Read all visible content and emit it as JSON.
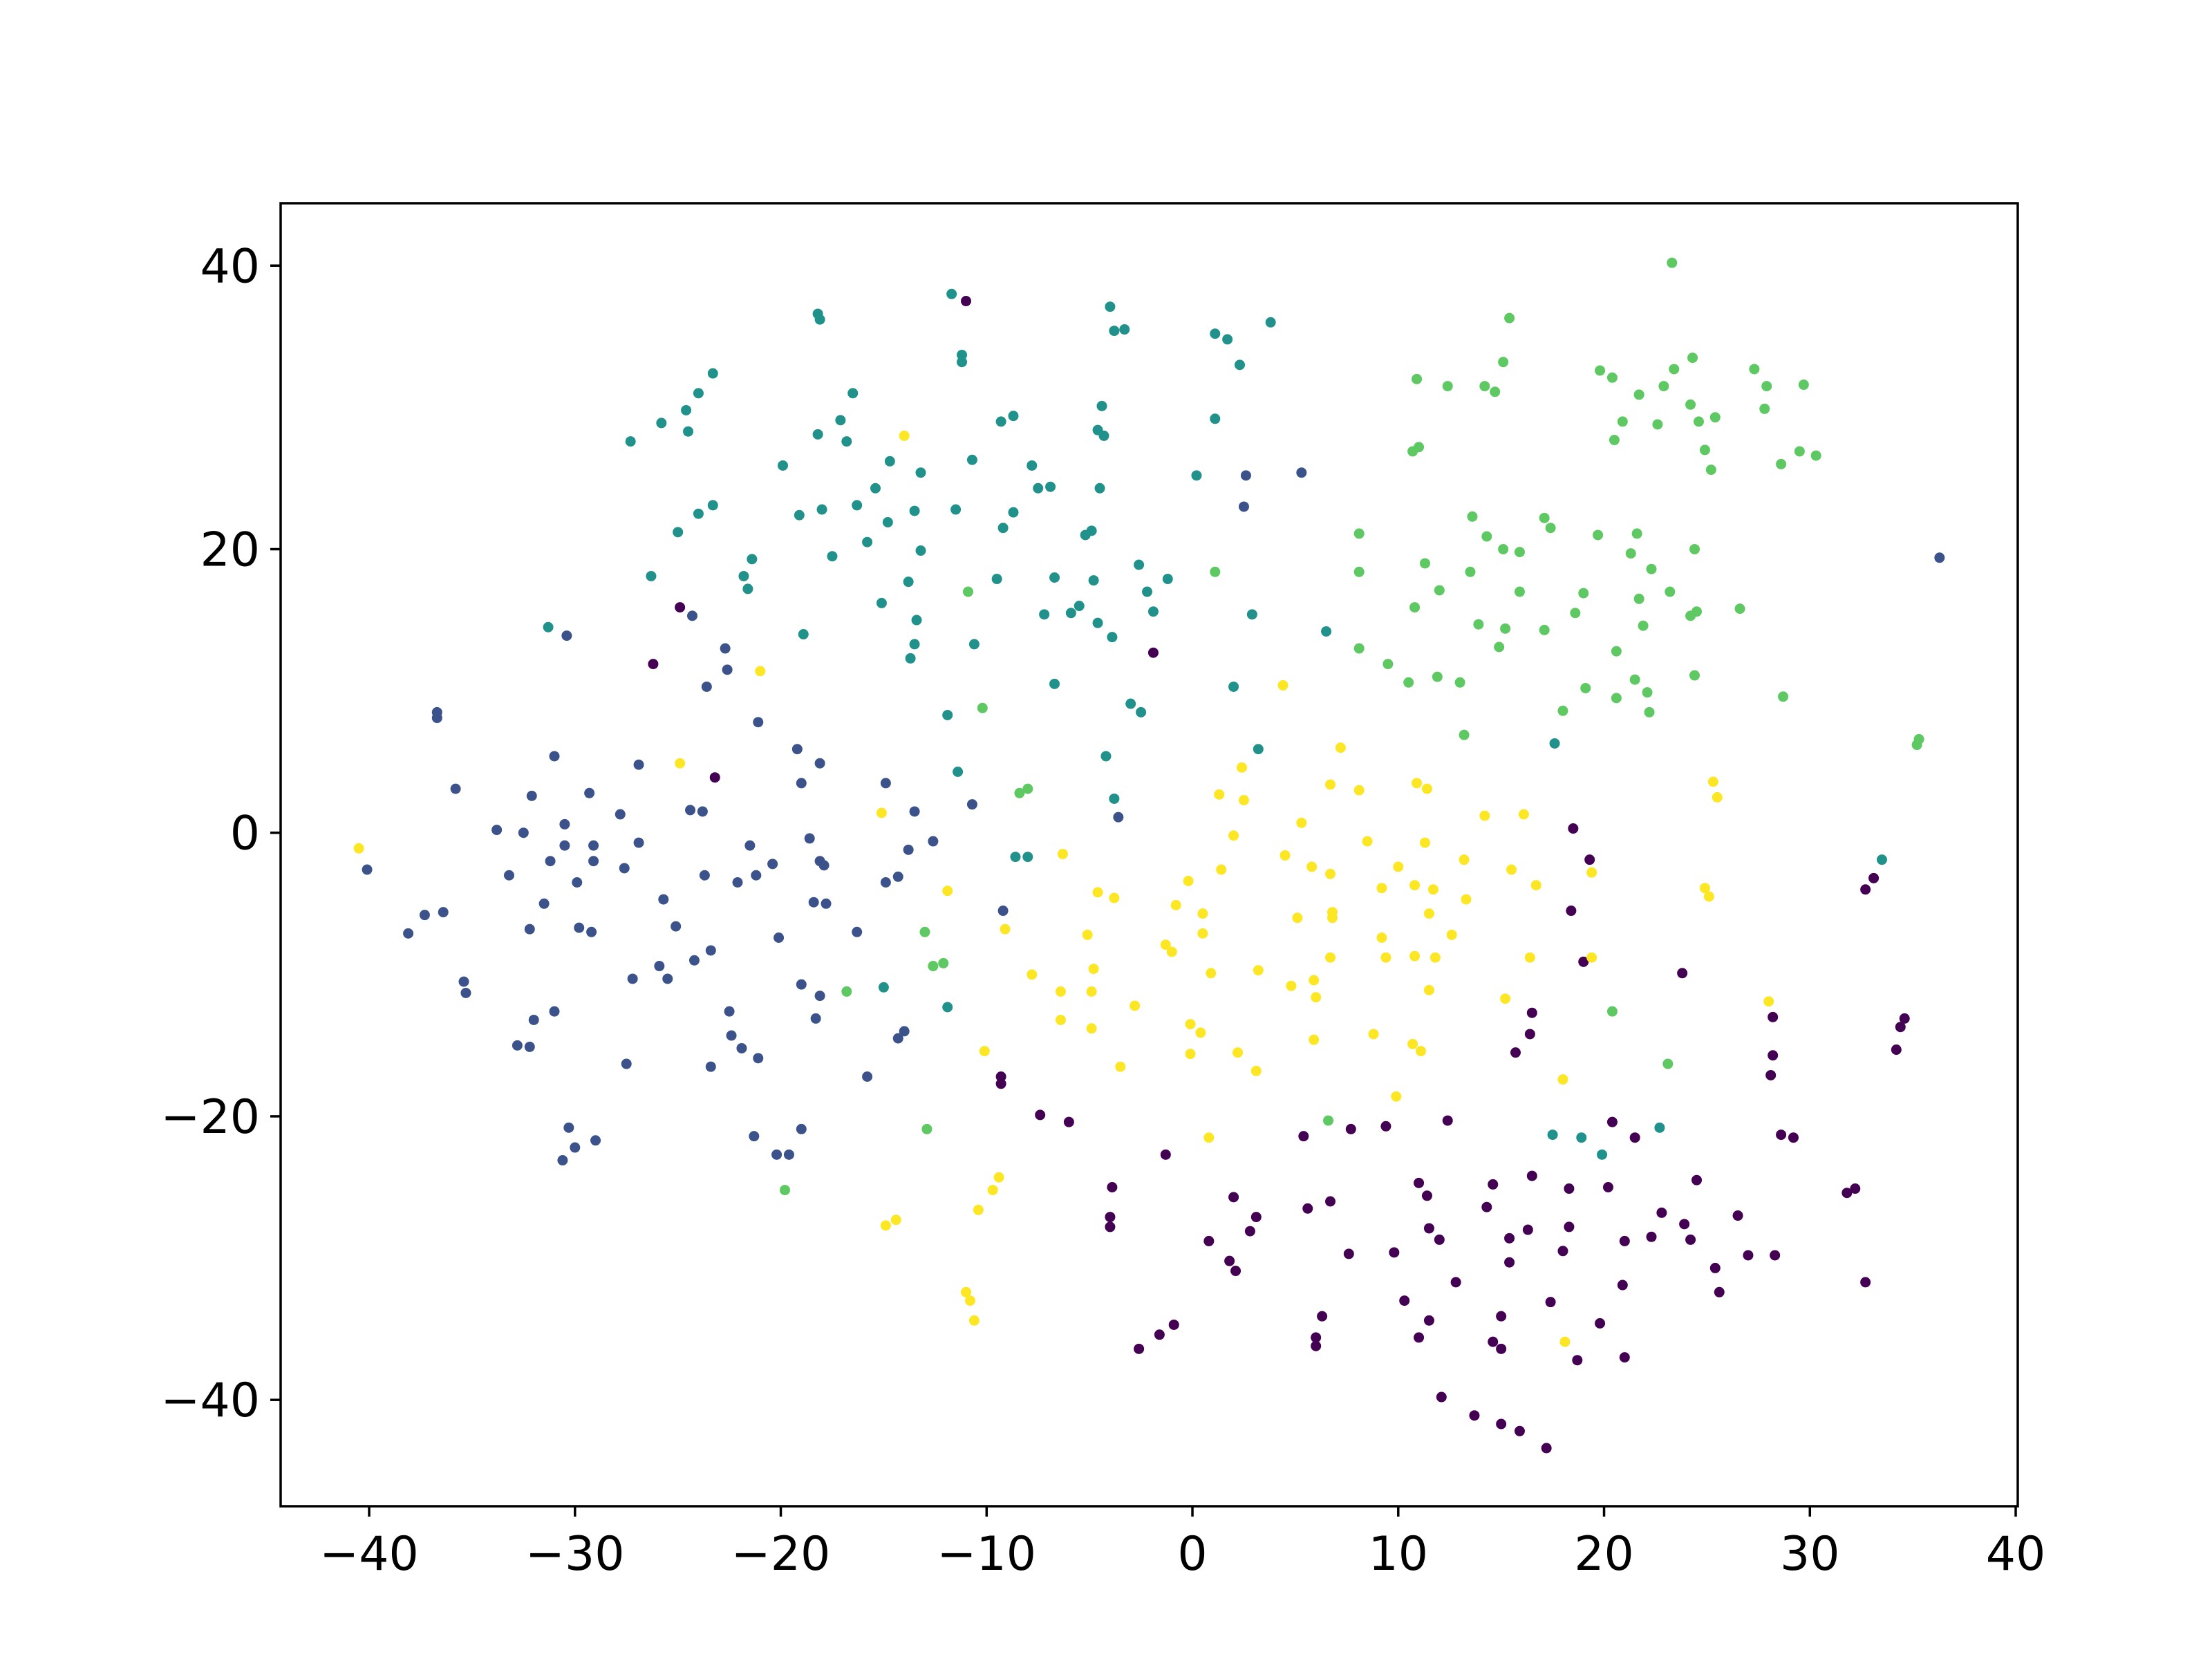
{
  "chart_data": {
    "type": "scatter",
    "xlim": [
      -44.3,
      40.1
    ],
    "ylim": [
      -47.5,
      44.4
    ],
    "xticks": [
      {
        "value": -40,
        "label": "−40"
      },
      {
        "value": -30,
        "label": "−30"
      },
      {
        "value": -20,
        "label": "−20"
      },
      {
        "value": -10,
        "label": "−10"
      },
      0,
      10,
      20,
      30,
      40
    ],
    "yticks": [
      {
        "value": -40,
        "label": "−40"
      },
      {
        "value": -20,
        "label": "−20"
      },
      0,
      20,
      40
    ],
    "grid": false,
    "series": [
      {
        "color": "#440154",
        "x": [
          -11.0,
          -26.2,
          -24.9,
          -23.2,
          -1.9,
          18.5,
          19.3,
          19.0,
          18.4,
          23.8,
          32.7,
          33.1,
          34.6,
          34.4,
          34.2,
          28.2,
          28.2,
          28.1,
          16.5,
          16.4,
          15.7,
          28.6,
          29.2,
          31.8,
          32.2,
          32.7,
          -9.3,
          -9.3,
          -7.4,
          -6.0,
          -3.9,
          -4.0,
          -4.0,
          -1.3,
          2.0,
          3.1,
          2.8,
          0.8,
          1.8,
          2.1,
          5.4,
          5.6,
          7.7,
          9.4,
          12.4,
          6.7,
          7.6,
          9.8,
          11.5,
          11.0,
          11.4,
          12.0,
          12.8,
          10.3,
          11.5,
          11.0,
          14.3,
          14.6,
          15.4,
          15.4,
          16.3,
          16.5,
          18.3,
          18.3,
          18.0,
          17.4,
          15.0,
          14.6,
          15.0,
          18.7,
          19.8,
          20.9,
          20.2,
          20.4,
          21.5,
          21.0,
          22.3,
          22.8,
          23.9,
          24.2,
          24.5,
          25.4,
          25.6,
          26.5,
          27.0,
          28.3,
          21.0,
          12.1,
          13.7,
          15.0,
          15.9,
          17.2,
          6.3,
          6.0,
          6.0,
          -0.9,
          -1.6,
          -2.6
        ],
        "y": [
          37.5,
          11.9,
          15.9,
          3.9,
          12.7,
          0.3,
          -1.9,
          -9.1,
          -5.5,
          -9.9,
          -4.0,
          -3.2,
          -13.1,
          -13.7,
          -15.3,
          -13.0,
          -15.7,
          -17.1,
          -12.7,
          -14.2,
          -15.5,
          -21.3,
          -21.5,
          -25.4,
          -25.1,
          -31.7,
          -17.2,
          -17.7,
          -19.9,
          -20.4,
          -25.0,
          -27.1,
          -27.8,
          -22.7,
          -25.7,
          -27.1,
          -28.1,
          -28.8,
          -30.2,
          -30.9,
          -21.4,
          -26.5,
          -20.9,
          -20.7,
          -20.3,
          -26.0,
          -29.7,
          -29.6,
          -27.9,
          -24.7,
          -25.6,
          -28.7,
          -31.7,
          -33.0,
          -34.4,
          -35.6,
          -26.4,
          -24.8,
          -28.6,
          -30.3,
          -28.0,
          -24.2,
          -25.1,
          -27.8,
          -29.5,
          -33.1,
          -34.1,
          -35.9,
          -36.4,
          -37.2,
          -34.6,
          -31.9,
          -25.0,
          -20.4,
          -21.5,
          -28.8,
          -28.5,
          -26.8,
          -27.6,
          -28.7,
          -24.5,
          -30.7,
          -32.4,
          -27.0,
          -29.8,
          -29.8,
          -37.0,
          -39.8,
          -41.1,
          -41.7,
          -42.2,
          -43.4,
          -34.1,
          -35.6,
          -36.2,
          -34.7,
          -35.4,
          -36.4
        ]
      },
      {
        "color": "#3b528b",
        "x": [
          36.3,
          5.3,
          2.5,
          2.6,
          -30.4,
          -24.3,
          -22.7,
          -22.6,
          -23.6,
          -21.1,
          -36.7,
          -36.7,
          -35.8,
          -31.0,
          -26.9,
          -19.2,
          -18.1,
          -19.0,
          -14.9,
          -33.8,
          -32.5,
          -32.1,
          -30.5,
          -29.3,
          -27.8,
          -26.9,
          -31.2,
          -30.5,
          -29.1,
          -29.1,
          -29.9,
          -27.6,
          -33.2,
          -31.5,
          -32.2,
          -29.8,
          -29.2,
          -40.1,
          -38.1,
          -37.3,
          -36.4,
          -35.4,
          -35.3,
          -27.2,
          -25.9,
          -25.5,
          -25.7,
          -25.1,
          -24.4,
          -23.8,
          -23.7,
          -23.4,
          -24.2,
          -22.1,
          -21.5,
          -21.2,
          -20.4,
          -20.1,
          -22.5,
          -22.4,
          -21.9,
          -21.1,
          -23.4,
          -27.5,
          -31.0,
          -32.0,
          -32.8,
          -32.2,
          -30.3,
          -30.0,
          -30.6,
          -29.0,
          -21.3,
          -19.0,
          -20.2,
          -19.6,
          -18.6,
          -18.1,
          -17.9,
          -18.4,
          -17.8,
          -19.0,
          -18.1,
          -18.3,
          -16.3,
          -15.8,
          -14.9,
          -14.3,
          -13.8,
          -13.5,
          -12.6,
          -10.7,
          -14.3,
          -14.0,
          -9.2,
          -3.6
        ],
        "y": [
          19.4,
          25.4,
          23.0,
          25.2,
          13.9,
          15.3,
          13.0,
          11.5,
          10.3,
          7.8,
          8.5,
          8.1,
          3.1,
          5.4,
          4.8,
          5.9,
          4.9,
          3.5,
          3.5,
          0.2,
          0,
          2.6,
          0.6,
          2.8,
          1.3,
          -0.7,
          -2.0,
          -0.9,
          -0.9,
          -2.0,
          -3.5,
          -2.5,
          -3.0,
          -5.0,
          -6.8,
          -6.7,
          -7.0,
          -2.6,
          -7.1,
          -5.8,
          -5.6,
          -10.5,
          -11.3,
          -10.3,
          -9.4,
          -10.3,
          -4.7,
          -6.6,
          1.6,
          1.5,
          -3.0,
          -8.3,
          -9.0,
          -3.5,
          -0.9,
          -3.0,
          -2.2,
          -7.4,
          -12.6,
          -14.3,
          -15.2,
          -15.9,
          -16.5,
          -16.3,
          -12.6,
          -13.2,
          -15.0,
          -15.1,
          -20.8,
          -22.2,
          -23.1,
          -21.7,
          -21.4,
          -20.9,
          -22.7,
          -22.7,
          -0.4,
          -2.0,
          -2.3,
          -4.9,
          -5.0,
          -10.7,
          -11.5,
          -13.1,
          -7.0,
          -17.2,
          -3.5,
          -3.1,
          -1.2,
          1.5,
          -0.6,
          2.0,
          -14.5,
          -14.0,
          -5.5,
          1.1
        ]
      },
      {
        "color": "#21918c",
        "x": [
          -11.7,
          -18.2,
          -18.1,
          -11.2,
          -11.2,
          -4.0,
          -3.8,
          -3.3,
          1.1,
          1.7,
          3.8,
          2.3,
          -23.3,
          -24.0,
          -24.6,
          -24.5,
          -25.8,
          -27.3,
          -16.5,
          -17.1,
          -18.2,
          -16.8,
          -19.9,
          -14.7,
          -13.2,
          -10.7,
          -9.3,
          -8.7,
          -7.8,
          -7.5,
          -6.9,
          -4.4,
          -4.6,
          -4.3,
          -4.5,
          1.1,
          0.2,
          -23.3,
          -24.0,
          -25.0,
          -26.3,
          -21.4,
          -21.8,
          -21.6,
          -19.1,
          -18.0,
          -17.5,
          -16.3,
          -15.4,
          -15.8,
          -14.8,
          -13.5,
          -13.2,
          -11.5,
          -8.7,
          -9.2,
          -9.5,
          -15.1,
          -13.8,
          -13.4,
          -13.5,
          -13.7,
          -10.6,
          -18.9,
          -31.3,
          -6.7,
          -7.2,
          -5.9,
          -5.5,
          -5.2,
          -4.9,
          -4.8,
          -4.6,
          -3.9,
          -2.6,
          -2.2,
          -1.9,
          -1.2,
          -6.7,
          -3.0,
          -2.5,
          -4.2,
          -3.8,
          -11.9,
          -11.4,
          2.9,
          2.0,
          6.5,
          3.2,
          17.6,
          33.5,
          -8.6,
          -8.0,
          -15.0,
          -11.9,
          17.5,
          18.9,
          19.9,
          22.7
        ],
        "y": [
          38.0,
          36.6,
          36.2,
          33.7,
          33.2,
          37.1,
          35.4,
          35.5,
          35.2,
          34.8,
          36.0,
          33.0,
          32.4,
          31.0,
          29.8,
          28.3,
          28.9,
          27.6,
          31.0,
          29.1,
          28.1,
          27.6,
          25.9,
          26.2,
          25.4,
          26.3,
          29.0,
          29.4,
          25.9,
          24.3,
          24.4,
          30.1,
          28.4,
          28.0,
          24.3,
          29.2,
          25.2,
          23.1,
          22.5,
          21.2,
          18.1,
          19.3,
          18.1,
          17.2,
          22.4,
          22.8,
          19.5,
          23.1,
          24.3,
          20.5,
          21.9,
          22.7,
          19.9,
          22.8,
          22.6,
          21.5,
          17.9,
          16.2,
          17.7,
          15.0,
          13.3,
          12.3,
          13.3,
          14.0,
          14.5,
          18.0,
          15.4,
          15.5,
          16.0,
          21.0,
          21.3,
          17.8,
          14.8,
          13.8,
          18.9,
          17.0,
          15.6,
          17.9,
          10.5,
          9.1,
          8.5,
          5.4,
          2.4,
          8.3,
          4.3,
          15.4,
          10.3,
          14.2,
          5.9,
          6.3,
          -1.9,
          -1.7,
          -1.7,
          -10.9,
          -12.3,
          -21.3,
          -21.5,
          -22.7,
          -20.8
        ]
      },
      {
        "color": "#5ec962",
        "x": [
          23.3,
          15.4,
          15.1,
          10.9,
          12.4,
          14.2,
          14.7,
          19.8,
          20.4,
          21.7,
          22.9,
          23.4,
          24.3,
          24.2,
          24.6,
          25.4,
          22.6,
          20.9,
          20.5,
          24.9,
          25.2,
          27.3,
          27.9,
          27.8,
          29.7,
          29.5,
          30.3,
          28.6,
          10.7,
          11.0,
          8.1,
          8.1,
          11.3,
          10.8,
          12.0,
          13.6,
          14.3,
          13.5,
          15.1,
          15.9,
          17.1,
          17.4,
          15.9,
          13.9,
          15.2,
          14.9,
          17.1,
          18.6,
          19.0,
          19.7,
          21.3,
          21.6,
          22.3,
          21.7,
          23.2,
          21.9,
          24.2,
          24.5,
          24.4,
          26.6,
          24.4,
          21.5,
          22.1,
          22.2,
          20.6,
          19.1,
          20.6,
          18.0,
          8.1,
          9.5,
          10.5,
          11.9,
          13.0,
          13.2,
          28.7,
          35.2,
          35.3,
          1.1,
          -10.9,
          -10.2,
          -8.4,
          -8.0,
          -13.0,
          -12.6,
          -12.1,
          -16.8,
          -12.9,
          -19.8,
          6.6,
          20.4,
          23.1
        ],
        "y": [
          40.2,
          36.3,
          33.2,
          32.0,
          31.5,
          31.5,
          31.1,
          32.6,
          32.1,
          30.9,
          31.5,
          32.7,
          33.5,
          30.2,
          29.0,
          29.3,
          28.8,
          29.0,
          27.7,
          27.0,
          25.6,
          32.7,
          31.5,
          29.9,
          31.6,
          26.9,
          26.6,
          26.0,
          26.9,
          27.2,
          21.1,
          18.4,
          19.0,
          15.9,
          17.1,
          22.3,
          20.9,
          18.4,
          20.0,
          19.8,
          22.2,
          21.5,
          17.0,
          14.7,
          14.4,
          13.1,
          14.3,
          15.5,
          16.9,
          21.0,
          19.7,
          21.1,
          18.6,
          16.5,
          17.0,
          14.6,
          15.3,
          15.6,
          20.0,
          15.8,
          11.1,
          10.8,
          9.9,
          8.5,
          12.8,
          10.2,
          9.5,
          8.6,
          13.0,
          11.9,
          10.6,
          11.0,
          10.6,
          6.9,
          9.6,
          6.2,
          6.6,
          18.4,
          17.0,
          8.8,
          2.8,
          3.1,
          -7.0,
          -9.4,
          -9.2,
          -11.2,
          -20.9,
          -25.2,
          -20.3,
          -12.6,
          -16.3
        ]
      },
      {
        "color": "#fde725",
        "x": [
          -40.5,
          -24.9,
          -21.0,
          -14.0,
          4.4,
          7.2,
          -15.1,
          -11.9,
          -9.1,
          -6.3,
          -4.6,
          -3.8,
          -5.1,
          -7.8,
          -6.4,
          -6.4,
          -4.8,
          -4.9,
          -4.9,
          -2.8,
          -3.5,
          -10.1,
          -9.4,
          -9.7,
          -10.4,
          -14.9,
          -14.4,
          -11.0,
          -10.8,
          -10.6,
          -0.2,
          -0.8,
          0.5,
          0.5,
          -1.3,
          -1.0,
          0.9,
          -0.1,
          0.4,
          -0.1,
          2.2,
          3.1,
          0.8,
          1.4,
          2.0,
          1.3,
          2.4,
          2.5,
          3.2,
          4.5,
          5.3,
          5.1,
          4.8,
          5.8,
          5.9,
          6.0,
          5.9,
          6.7,
          6.7,
          6.8,
          6.8,
          6.7,
          8.1,
          8.5,
          9.2,
          10.0,
          9.2,
          9.4,
          8.8,
          9.9,
          10.9,
          11.4,
          11.3,
          10.8,
          11.7,
          11.5,
          10.8,
          11.8,
          11.5,
          10.7,
          11.1,
          12.6,
          13.2,
          13.3,
          14.2,
          15.5,
          16.7,
          16.1,
          16.4,
          15.2,
          18.0,
          19.4,
          19.4,
          18.1,
          25.3,
          25.5,
          24.9,
          25.1,
          28.0
        ],
        "y": [
          -1.1,
          4.9,
          11.4,
          28.0,
          10.4,
          6.0,
          1.4,
          -4.1,
          -6.8,
          -1.5,
          -4.2,
          -4.6,
          -7.2,
          -10.0,
          -11.2,
          -13.2,
          -9.6,
          -11.2,
          -13.8,
          -12.2,
          -16.5,
          -15.4,
          -24.3,
          -25.2,
          -26.6,
          -27.7,
          -27.3,
          -32.4,
          -33.0,
          -34.4,
          -3.4,
          -5.1,
          -5.7,
          -7.1,
          -7.9,
          -8.4,
          -9.9,
          -13.5,
          -14.1,
          -15.6,
          -15.5,
          -16.8,
          -21.5,
          -2.6,
          -0.2,
          2.7,
          4.6,
          2.3,
          -9.7,
          -1.6,
          0.7,
          -6.0,
          -10.8,
          -2.4,
          -10.4,
          -11.6,
          -14.6,
          3.4,
          -2.9,
          -5.6,
          -6.0,
          -8.8,
          3.0,
          -0.6,
          -3.9,
          -2.4,
          -7.4,
          -8.8,
          -14.2,
          -18.6,
          3.5,
          3.1,
          -0.7,
          -3.7,
          -4.0,
          -5.7,
          -8.7,
          -8.8,
          -11.1,
          -14.9,
          -15.4,
          -7.2,
          -1.9,
          -4.7,
          1.2,
          -2.6,
          -3.7,
          1.3,
          -8.8,
          -11.7,
          -17.4,
          -2.8,
          -8.8,
          -35.9,
          3.6,
          2.5,
          -3.9,
          -4.5,
          -11.9
        ]
      }
    ]
  }
}
